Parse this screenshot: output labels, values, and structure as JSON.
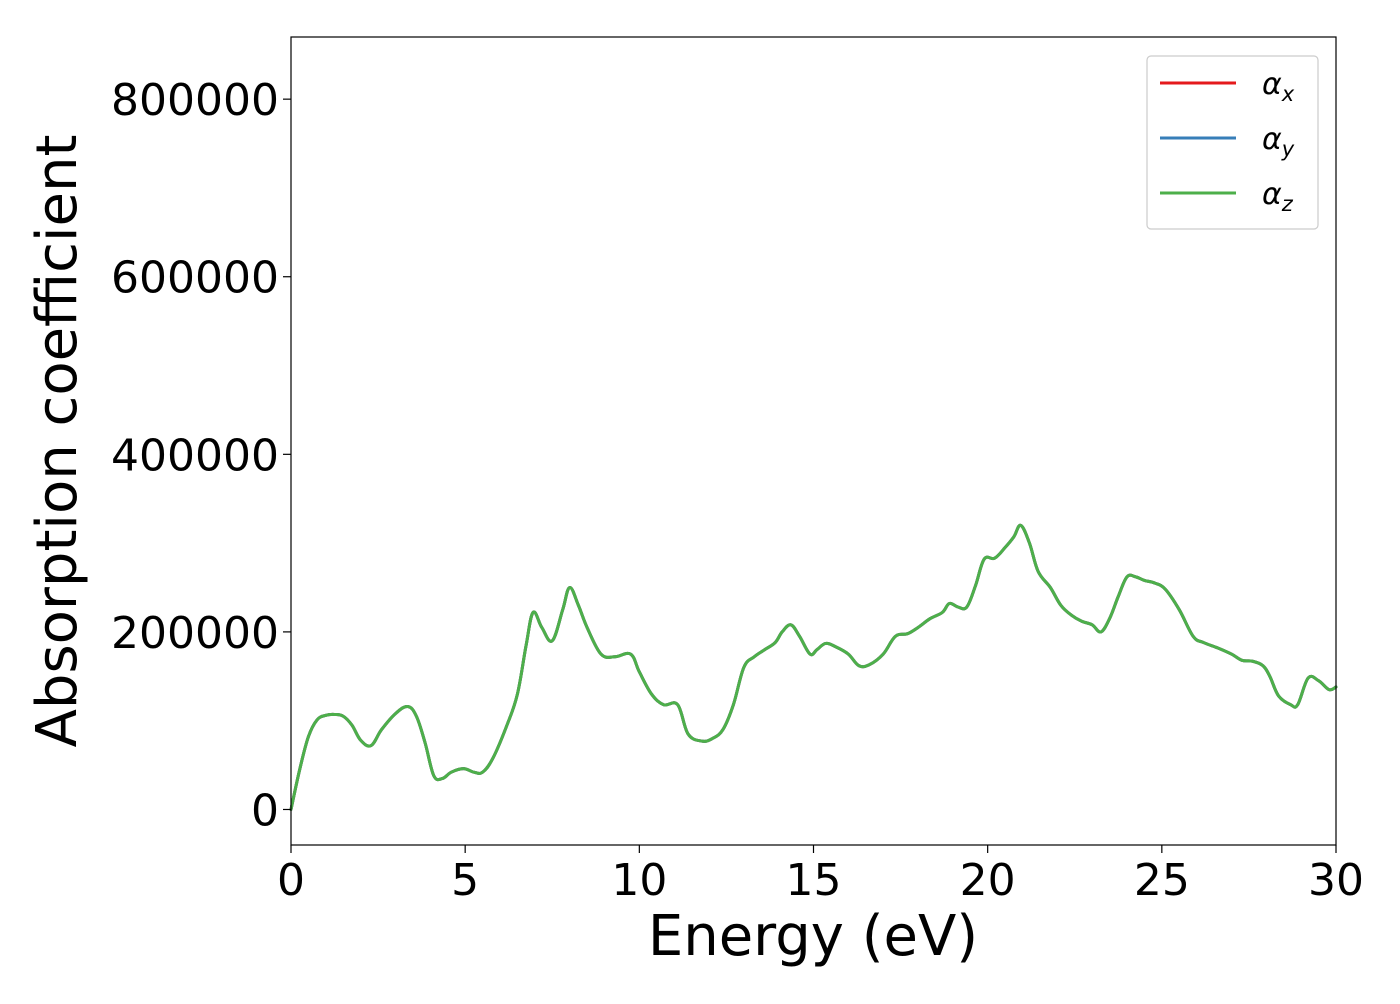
{
  "chart_data": {
    "type": "line",
    "title": "",
    "xlabel": "Energy (eV)",
    "ylabel": "Absorption coefficient",
    "xlim": [
      0,
      30
    ],
    "ylim": [
      -40000,
      870000
    ],
    "xticks": [
      0,
      5,
      10,
      15,
      20,
      25,
      30
    ],
    "yticks": [
      0,
      200000,
      400000,
      600000,
      800000
    ],
    "grid": false,
    "legend_position": "top-right",
    "x": [
      0,
      0.25,
      0.5,
      0.75,
      1.0,
      1.25,
      1.5,
      1.75,
      2.0,
      2.3,
      2.6,
      3.0,
      3.35,
      3.6,
      3.85,
      4.1,
      4.35,
      4.6,
      4.95,
      5.25,
      5.5,
      5.8,
      6.2,
      6.5,
      6.75,
      6.95,
      7.2,
      7.5,
      7.8,
      8.0,
      8.25,
      8.5,
      8.9,
      9.3,
      9.75,
      10.0,
      10.35,
      10.7,
      11.1,
      11.4,
      11.8,
      12.1,
      12.4,
      12.7,
      13.0,
      13.3,
      13.6,
      13.9,
      14.1,
      14.35,
      14.6,
      14.9,
      15.1,
      15.35,
      15.65,
      16.0,
      16.3,
      16.6,
      17.0,
      17.35,
      17.7,
      18.0,
      18.35,
      18.7,
      18.9,
      19.15,
      19.4,
      19.65,
      19.9,
      20.2,
      20.5,
      20.75,
      20.95,
      21.2,
      21.45,
      21.8,
      22.1,
      22.4,
      22.7,
      23.0,
      23.25,
      23.5,
      23.75,
      24.0,
      24.25,
      24.5,
      24.8,
      25.1,
      25.5,
      25.9,
      26.2,
      26.6,
      27.0,
      27.3,
      27.6,
      27.9,
      28.1,
      28.35,
      28.7,
      28.9,
      29.2,
      29.5,
      29.8,
      30.0
    ],
    "series": [
      {
        "name": "αx",
        "color": "#e41a1c",
        "values": [
          0,
          45000,
          82000,
          101000,
          106000,
          107000,
          105000,
          95000,
          78000,
          72000,
          90000,
          108000,
          116000,
          105000,
          75000,
          38000,
          35000,
          42000,
          46000,
          42000,
          42000,
          58000,
          95000,
          130000,
          185000,
          222000,
          205000,
          190000,
          225000,
          250000,
          230000,
          205000,
          175000,
          172000,
          175000,
          155000,
          130000,
          118000,
          118000,
          85000,
          77000,
          80000,
          90000,
          118000,
          160000,
          172000,
          180000,
          188000,
          200000,
          208000,
          195000,
          175000,
          180000,
          187000,
          183000,
          175000,
          162000,
          163000,
          175000,
          195000,
          198000,
          205000,
          215000,
          222000,
          232000,
          228000,
          228000,
          252000,
          282000,
          283000,
          295000,
          307000,
          320000,
          300000,
          268000,
          250000,
          230000,
          219000,
          212000,
          208000,
          200000,
          215000,
          240000,
          262000,
          262000,
          258000,
          255000,
          248000,
          225000,
          195000,
          188000,
          182000,
          175000,
          168000,
          167000,
          162000,
          150000,
          128000,
          118000,
          118000,
          148000,
          145000,
          135000,
          138000
        ]
      },
      {
        "name": "αy",
        "color": "#377eb8",
        "values": [
          0,
          45000,
          82000,
          101000,
          106000,
          107000,
          105000,
          95000,
          78000,
          72000,
          90000,
          108000,
          116000,
          105000,
          75000,
          38000,
          35000,
          42000,
          46000,
          42000,
          42000,
          58000,
          95000,
          130000,
          185000,
          222000,
          205000,
          190000,
          225000,
          250000,
          230000,
          205000,
          175000,
          172000,
          175000,
          155000,
          130000,
          118000,
          118000,
          85000,
          77000,
          80000,
          90000,
          118000,
          160000,
          172000,
          180000,
          188000,
          200000,
          208000,
          195000,
          175000,
          180000,
          187000,
          183000,
          175000,
          162000,
          163000,
          175000,
          195000,
          198000,
          205000,
          215000,
          222000,
          232000,
          228000,
          228000,
          252000,
          282000,
          283000,
          295000,
          307000,
          320000,
          300000,
          268000,
          250000,
          230000,
          219000,
          212000,
          208000,
          200000,
          215000,
          240000,
          262000,
          262000,
          258000,
          255000,
          248000,
          225000,
          195000,
          188000,
          182000,
          175000,
          168000,
          167000,
          162000,
          150000,
          128000,
          118000,
          118000,
          148000,
          145000,
          135000,
          138000
        ]
      },
      {
        "name": "αz",
        "color": "#4daf4a",
        "values": [
          0,
          45000,
          82000,
          101000,
          106000,
          107000,
          105000,
          95000,
          78000,
          72000,
          90000,
          108000,
          116000,
          105000,
          75000,
          38000,
          35000,
          42000,
          46000,
          42000,
          42000,
          58000,
          95000,
          130000,
          185000,
          222000,
          205000,
          190000,
          225000,
          250000,
          230000,
          205000,
          175000,
          172000,
          175000,
          155000,
          130000,
          118000,
          118000,
          85000,
          77000,
          80000,
          90000,
          118000,
          160000,
          172000,
          180000,
          188000,
          200000,
          208000,
          195000,
          175000,
          180000,
          187000,
          183000,
          175000,
          162000,
          163000,
          175000,
          195000,
          198000,
          205000,
          215000,
          222000,
          232000,
          228000,
          228000,
          252000,
          282000,
          283000,
          295000,
          307000,
          320000,
          300000,
          268000,
          250000,
          230000,
          219000,
          212000,
          208000,
          200000,
          215000,
          240000,
          262000,
          262000,
          258000,
          255000,
          248000,
          225000,
          195000,
          188000,
          182000,
          175000,
          168000,
          167000,
          162000,
          150000,
          128000,
          118000,
          118000,
          148000,
          145000,
          135000,
          138000
        ]
      }
    ],
    "legend": [
      {
        "symbol": "α",
        "sub": "x",
        "color": "#e41a1c"
      },
      {
        "symbol": "α",
        "sub": "y",
        "color": "#377eb8"
      },
      {
        "symbol": "α",
        "sub": "z",
        "color": "#4daf4a"
      }
    ]
  }
}
